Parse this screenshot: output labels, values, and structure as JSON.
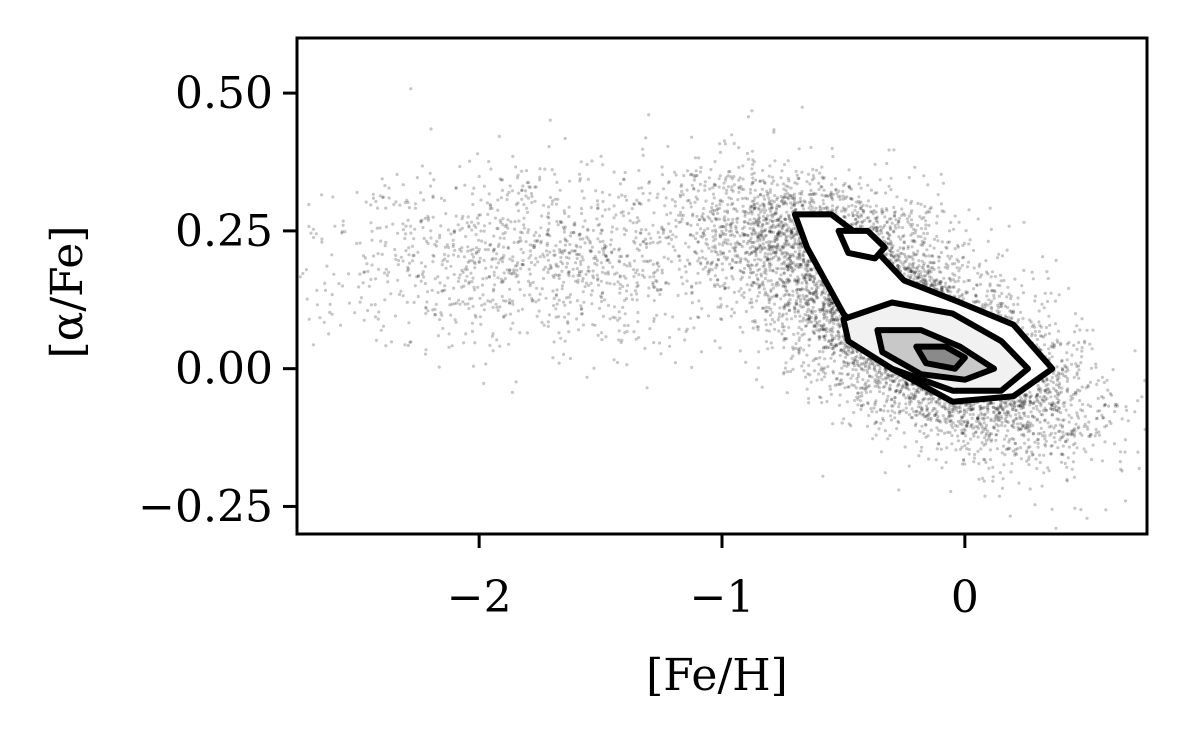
{
  "chart_data": {
    "type": "scatter",
    "title": "",
    "xlabel": "[Fe/H]",
    "ylabel": "[α/Fe]",
    "xlim": [
      -2.75,
      0.75
    ],
    "ylim": [
      -0.3,
      0.6
    ],
    "x_ticks": [
      {
        "value": -2,
        "label": "−2"
      },
      {
        "value": -1,
        "label": "−1"
      },
      {
        "value": 0,
        "label": "0"
      }
    ],
    "y_ticks": [
      {
        "value": 0.5,
        "label": "0.50"
      },
      {
        "value": 0.25,
        "label": "0.25"
      },
      {
        "value": 0.0,
        "label": "0.00"
      },
      {
        "value": -0.25,
        "label": "−0.25"
      }
    ],
    "grid": false,
    "legend": "none",
    "point_color": "#000000",
    "contour_color": "#000000",
    "distribution": {
      "components": [
        {
          "center": [
            -0.12,
            0.03
          ],
          "spread": [
            0.3,
            0.085
          ],
          "correlation": -0.55,
          "weight": 0.6
        },
        {
          "center": [
            -0.55,
            0.22
          ],
          "spread": [
            0.28,
            0.07
          ],
          "correlation": -0.4,
          "weight": 0.25
        },
        {
          "center": [
            -1.7,
            0.2
          ],
          "spread": [
            0.5,
            0.08
          ],
          "correlation": 0.0,
          "weight": 0.15
        }
      ]
    },
    "contours": [
      {
        "level": 1,
        "points": [
          [
            -0.7,
            0.28
          ],
          [
            -0.55,
            0.28
          ],
          [
            -0.4,
            0.23
          ],
          [
            -0.25,
            0.16
          ],
          [
            -0.02,
            0.12
          ],
          [
            0.2,
            0.08
          ],
          [
            0.36,
            0.0
          ],
          [
            0.2,
            -0.05
          ],
          [
            -0.05,
            -0.06
          ],
          [
            -0.3,
            0.0
          ],
          [
            -0.5,
            0.1
          ],
          [
            -0.65,
            0.22
          ]
        ]
      },
      {
        "level": 2,
        "points": [
          [
            -0.52,
            0.25
          ],
          [
            -0.4,
            0.25
          ],
          [
            -0.33,
            0.22
          ],
          [
            -0.37,
            0.2
          ],
          [
            -0.48,
            0.21
          ]
        ]
      },
      {
        "level": 3,
        "points": [
          [
            -0.5,
            0.09
          ],
          [
            -0.3,
            0.12
          ],
          [
            -0.05,
            0.1
          ],
          [
            0.15,
            0.05
          ],
          [
            0.26,
            0.0
          ],
          [
            0.15,
            -0.04
          ],
          [
            -0.05,
            -0.04
          ],
          [
            -0.3,
            0.0
          ],
          [
            -0.48,
            0.05
          ]
        ]
      },
      {
        "level": 4,
        "points": [
          [
            -0.36,
            0.07
          ],
          [
            -0.18,
            0.07
          ],
          [
            -0.02,
            0.04
          ],
          [
            0.12,
            0.0
          ],
          [
            0.0,
            -0.02
          ],
          [
            -0.18,
            -0.01
          ],
          [
            -0.34,
            0.03
          ]
        ]
      },
      {
        "level": 5,
        "points": [
          [
            -0.2,
            0.04
          ],
          [
            -0.08,
            0.04
          ],
          [
            0.0,
            0.02
          ],
          [
            -0.04,
            0.0
          ],
          [
            -0.16,
            0.01
          ]
        ]
      }
    ]
  }
}
